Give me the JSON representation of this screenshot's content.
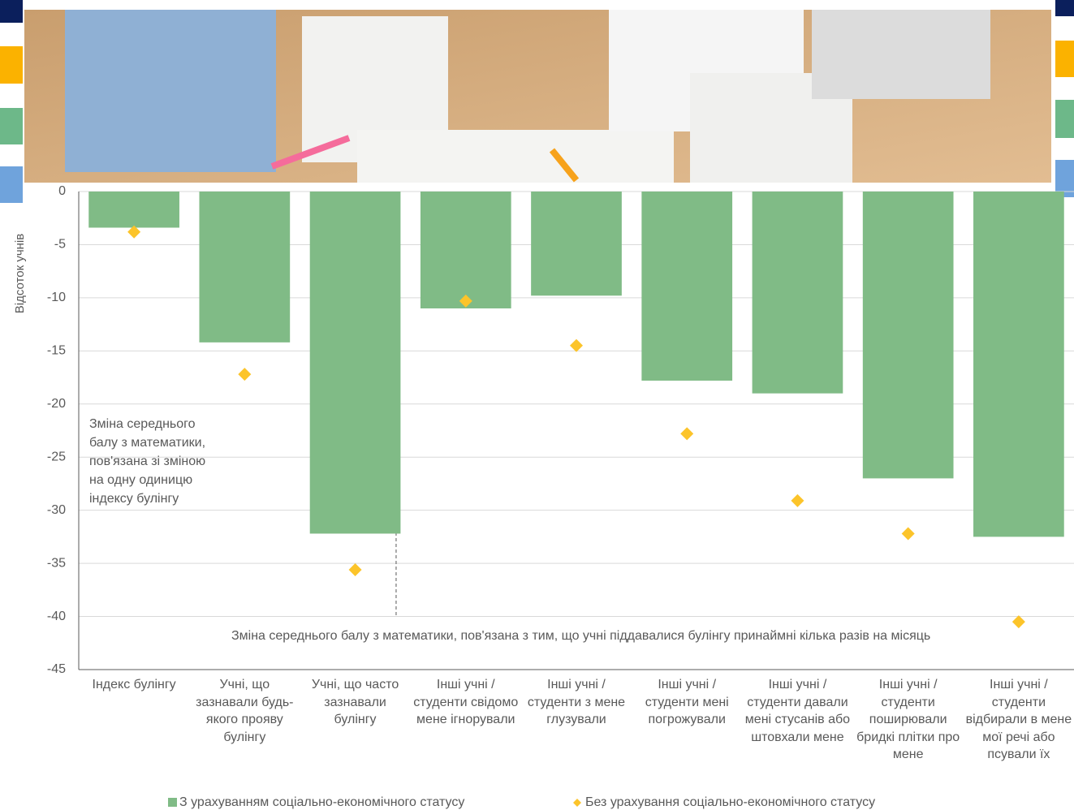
{
  "chart_data": {
    "type": "bar",
    "y_axis_label": "Відсоток учнів",
    "categories": [
      "Індекс булінгу",
      "Учні, що зазнавали будь-якого прояву булінгу",
      "Учні, що часто зазнавали булінгу",
      "Інші учні / студенти свідомо мене ігнорували",
      "Інші учні / студенти з мене глузували",
      "Інші учні / студенти мені погрожували",
      "Інші учні / студенти давали мені стусанів або штовхали мене",
      "Інші учні / студенти поширювали бридкі плітки про мене",
      "Інші учні / студенти відбирали в мене мої речі або псували їх"
    ],
    "series": [
      {
        "name": "З урахуванням соціально-економічного статусу",
        "color": "#80bb86",
        "marker": "bar",
        "values": [
          -3.4,
          -14.2,
          -32.2,
          -11.0,
          -9.8,
          -17.8,
          -19.0,
          -27.0,
          -32.5
        ]
      },
      {
        "name": "Без урахування соціально-економічного статусу",
        "color": "#fcc42a",
        "marker": "diamond",
        "values": [
          -3.8,
          -17.2,
          -35.6,
          -10.3,
          -14.5,
          -22.8,
          -29.1,
          -32.2,
          -40.5
        ]
      }
    ],
    "ylim": [
      -45,
      0
    ],
    "yticks": [
      0,
      -5,
      -10,
      -15,
      -20,
      -25,
      -30,
      -35,
      -40,
      -45
    ],
    "grid": true,
    "annotations": [
      "Зміна середнього балу з математики, пов'язана зі зміною на одну одиницю індексу булінгу",
      "Зміна середнього балу з математики, пов'язана з тим, що учні піддавалися булінгу принаймні кілька разів на місяць"
    ]
  }
}
